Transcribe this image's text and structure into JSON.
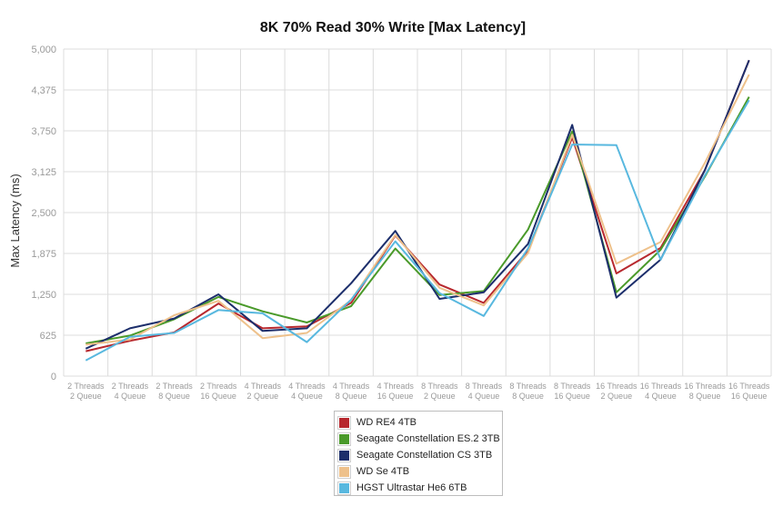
{
  "chart_data": {
    "type": "line",
    "title": "8K 70% Read 30% Write [Max Latency]",
    "xlabel": "",
    "ylabel": "Max Latency (ms)",
    "ylim": [
      0,
      5000
    ],
    "yticks": [
      "0",
      "625",
      "1,250",
      "1,875",
      "2,500",
      "3,125",
      "3,750",
      "4,375",
      "5,000"
    ],
    "grid": true,
    "legend_position": "bottom-center",
    "categories": [
      [
        "2 Threads",
        "2 Queue"
      ],
      [
        "2 Threads",
        "4 Queue"
      ],
      [
        "2 Threads",
        "8 Queue"
      ],
      [
        "2 Threads",
        "16 Queue"
      ],
      [
        "4 Threads",
        "2 Queue"
      ],
      [
        "4 Threads",
        "4 Queue"
      ],
      [
        "4 Threads",
        "8 Queue"
      ],
      [
        "4 Threads",
        "16 Queue"
      ],
      [
        "8 Threads",
        "2 Queue"
      ],
      [
        "8 Threads",
        "4 Queue"
      ],
      [
        "8 Threads",
        "8 Queue"
      ],
      [
        "8 Threads",
        "16 Queue"
      ],
      [
        "16 Threads",
        "2 Queue"
      ],
      [
        "16 Threads",
        "4 Queue"
      ],
      [
        "16 Threads",
        "8 Queue"
      ],
      [
        "16 Threads",
        "16 Queue"
      ]
    ],
    "series": [
      {
        "name": "WD RE4 4TB",
        "color": "#b7282e",
        "values": [
          380,
          540,
          670,
          1110,
          730,
          760,
          1120,
          2150,
          1400,
          1120,
          1920,
          3650,
          1570,
          1960,
          3150,
          4830
        ]
      },
      {
        "name": "Seagate Constellation ES.2 3TB",
        "color": "#4a9a2a",
        "values": [
          500,
          620,
          870,
          1210,
          990,
          820,
          1070,
          1950,
          1240,
          1300,
          2240,
          3740,
          1280,
          1930,
          3050,
          4270
        ]
      },
      {
        "name": "Seagate Constellation CS 3TB",
        "color": "#1c2e6b",
        "values": [
          420,
          730,
          880,
          1250,
          690,
          730,
          1420,
          2220,
          1180,
          1280,
          2020,
          3840,
          1200,
          1780,
          3150,
          4830
        ]
      },
      {
        "name": "WD Se 4TB",
        "color": "#eec18b",
        "values": [
          480,
          560,
          930,
          1150,
          580,
          660,
          1160,
          2160,
          1350,
          1080,
          1880,
          3690,
          1720,
          2050,
          3260,
          4610
        ]
      },
      {
        "name": "HGST Ultrastar He6 6TB",
        "color": "#58b8df",
        "values": [
          240,
          600,
          660,
          1010,
          960,
          520,
          1170,
          2060,
          1270,
          920,
          1950,
          3540,
          3530,
          1780,
          3070,
          4220
        ]
      }
    ]
  }
}
